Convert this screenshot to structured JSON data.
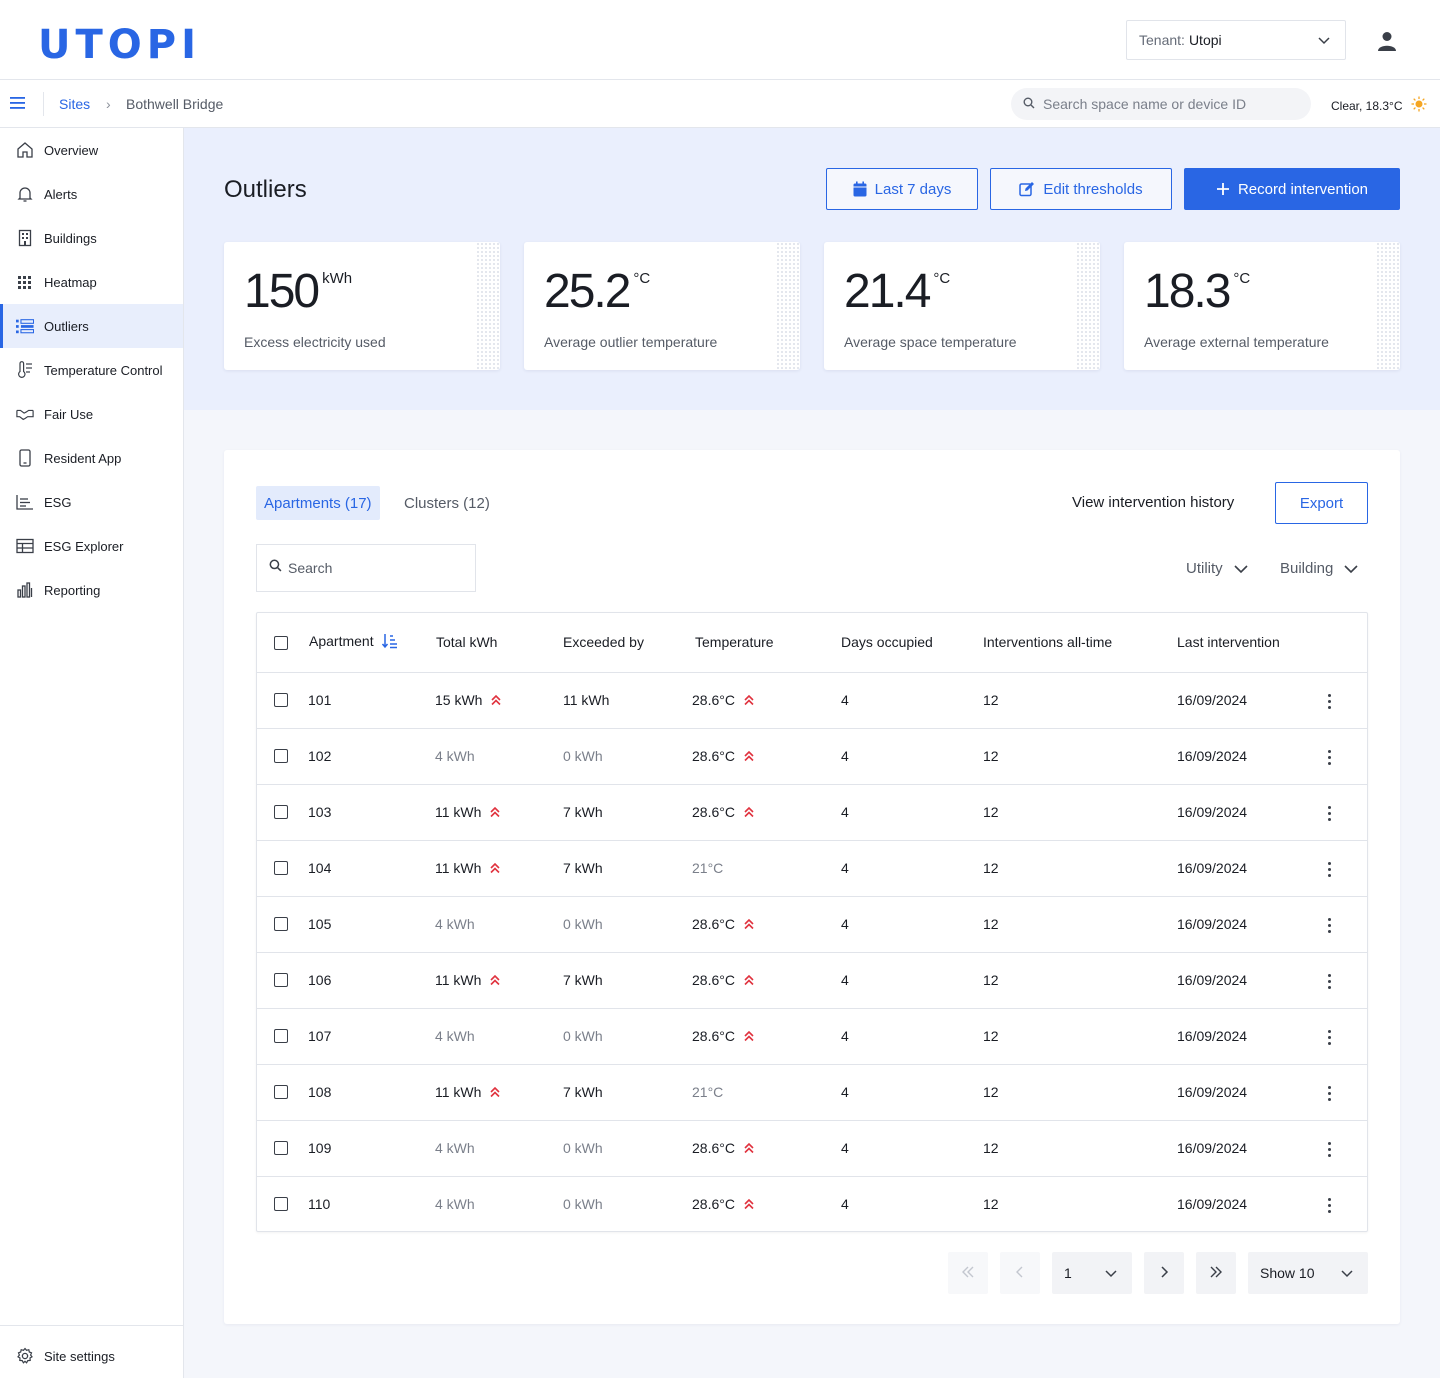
{
  "app": {
    "logo": "UTOPI"
  },
  "header": {
    "tenant_label": "Tenant:",
    "tenant_value": "Utopi"
  },
  "breadcrumb": {
    "sites": "Sites",
    "separator": "›",
    "current": "Bothwell Bridge"
  },
  "search": {
    "placeholder": "Search space name or device ID"
  },
  "weather": {
    "text": "Clear, 18.3°C"
  },
  "sidebar": {
    "items": [
      {
        "label": "Overview",
        "icon": "home-icon"
      },
      {
        "label": "Alerts",
        "icon": "bell-icon"
      },
      {
        "label": "Buildings",
        "icon": "building-icon"
      },
      {
        "label": "Heatmap",
        "icon": "grid-icon"
      },
      {
        "label": "Outliers",
        "icon": "outliers-icon",
        "active": true
      },
      {
        "label": "Temperature Control",
        "icon": "thermometer-icon"
      },
      {
        "label": "Fair Use",
        "icon": "handshake-icon"
      },
      {
        "label": "Resident App",
        "icon": "phone-icon"
      },
      {
        "label": "ESG",
        "icon": "chart-lines-icon"
      },
      {
        "label": "ESG Explorer",
        "icon": "table-icon"
      },
      {
        "label": "Reporting",
        "icon": "bar-chart-icon"
      }
    ],
    "settings": "Site settings"
  },
  "page": {
    "title": "Outliers",
    "btn_range": "Last 7 days",
    "btn_thresholds": "Edit thresholds",
    "btn_record": "Record intervention"
  },
  "stats": [
    {
      "value": "150",
      "unit": "kWh",
      "caption": "Excess electricity used"
    },
    {
      "value": "25.2",
      "unit": "°C",
      "caption": "Average outlier temperature"
    },
    {
      "value": "21.4",
      "unit": "°C",
      "caption": "Average space temperature"
    },
    {
      "value": "18.3",
      "unit": "°C",
      "caption": "Average external temperature"
    }
  ],
  "tabs": {
    "apartments": "Apartments (17)",
    "clusters": "Clusters (12)"
  },
  "actions": {
    "history": "View intervention history",
    "export": "Export"
  },
  "table_search": {
    "placeholder": "Search"
  },
  "filters": {
    "utility": "Utility",
    "building": "Building"
  },
  "columns": [
    "Apartment",
    "Total kWh",
    "Exceeded by",
    "Temperature",
    "Days occupied",
    "Interventions all-time",
    "Last intervention"
  ],
  "rows": [
    {
      "apt": "101",
      "kwh": "15 kWh",
      "kwh_up": true,
      "exceeded": "11 kWh",
      "temp": "28.6°C",
      "temp_up": true,
      "days": "4",
      "interventions": "12",
      "last": "16/09/2024"
    },
    {
      "apt": "102",
      "kwh": "4 kWh",
      "kwh_up": false,
      "exceeded": "0 kWh",
      "temp": "28.6°C",
      "temp_up": true,
      "days": "4",
      "interventions": "12",
      "last": "16/09/2024"
    },
    {
      "apt": "103",
      "kwh": "11 kWh",
      "kwh_up": true,
      "exceeded": "7 kWh",
      "temp": "28.6°C",
      "temp_up": true,
      "days": "4",
      "interventions": "12",
      "last": "16/09/2024"
    },
    {
      "apt": "104",
      "kwh": "11 kWh",
      "kwh_up": true,
      "exceeded": "7 kWh",
      "temp": "21°C",
      "temp_up": false,
      "days": "4",
      "interventions": "12",
      "last": "16/09/2024"
    },
    {
      "apt": "105",
      "kwh": "4 kWh",
      "kwh_up": false,
      "exceeded": "0 kWh",
      "temp": "28.6°C",
      "temp_up": true,
      "days": "4",
      "interventions": "12",
      "last": "16/09/2024"
    },
    {
      "apt": "106",
      "kwh": "11 kWh",
      "kwh_up": true,
      "exceeded": "7 kWh",
      "temp": "28.6°C",
      "temp_up": true,
      "days": "4",
      "interventions": "12",
      "last": "16/09/2024"
    },
    {
      "apt": "107",
      "kwh": "4 kWh",
      "kwh_up": false,
      "exceeded": "0 kWh",
      "temp": "28.6°C",
      "temp_up": true,
      "days": "4",
      "interventions": "12",
      "last": "16/09/2024"
    },
    {
      "apt": "108",
      "kwh": "11 kWh",
      "kwh_up": true,
      "exceeded": "7 kWh",
      "temp": "21°C",
      "temp_up": false,
      "days": "4",
      "interventions": "12",
      "last": "16/09/2024"
    },
    {
      "apt": "109",
      "kwh": "4 kWh",
      "kwh_up": false,
      "exceeded": "0 kWh",
      "temp": "28.6°C",
      "temp_up": true,
      "days": "4",
      "interventions": "12",
      "last": "16/09/2024"
    },
    {
      "apt": "110",
      "kwh": "4 kWh",
      "kwh_up": false,
      "exceeded": "0 kWh",
      "temp": "28.6°C",
      "temp_up": true,
      "days": "4",
      "interventions": "12",
      "last": "16/09/2024"
    }
  ],
  "pagination": {
    "page": "1",
    "show": "Show 10"
  },
  "colors": {
    "accent": "#2966e4",
    "alert": "#e0323e",
    "band": "#eaeffd",
    "muted": "#7a7f8a"
  }
}
